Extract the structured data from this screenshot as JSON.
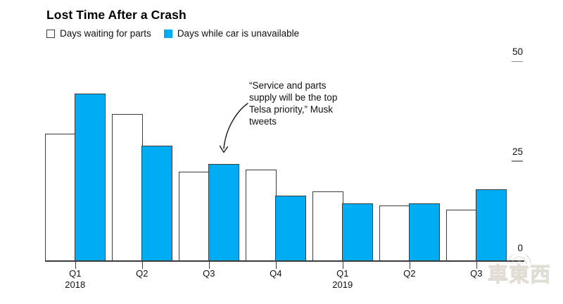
{
  "title": "Lost Time After a Crash",
  "legend": {
    "items": [
      {
        "label": "Days waiting for parts",
        "swatch": "white-outline"
      },
      {
        "label": "Days while car is unavailable",
        "swatch": "blue"
      }
    ]
  },
  "annotation": {
    "text": "“Service and parts supply will be the top Telsa priority,” Musk tweets",
    "lines": [
      "“Service and parts",
      "supply will be the top",
      "Telsa priority,” Musk",
      "tweets"
    ],
    "arrow_points_to": "Q3 2018"
  },
  "watermark": "車東西",
  "colors": {
    "bar_fill_blue": "#00adf3",
    "bar_fill_white": "#ffffff",
    "bar_outline": "#3b3c40",
    "axis_line": "#3b3c40",
    "y_tick_dash": "#8c8c8c",
    "text": "#111111"
  },
  "chart_data": {
    "type": "bar",
    "title": "Lost Time After a Crash",
    "unit": "days",
    "categories": [
      {
        "quarter": "Q1",
        "year": "2018"
      },
      {
        "quarter": "Q2"
      },
      {
        "quarter": "Q3"
      },
      {
        "quarter": "Q4"
      },
      {
        "quarter": "Q1",
        "year": "2019"
      },
      {
        "quarter": "Q2"
      },
      {
        "quarter": "Q3"
      }
    ],
    "series": [
      {
        "name": "Days waiting for parts",
        "style": "white-outlined",
        "values": [
          32,
          37,
          22.5,
          23,
          17.5,
          14,
          13
        ]
      },
      {
        "name": "Days while car is unavailable",
        "style": "solid-blue",
        "values": [
          42,
          29,
          24.5,
          16.5,
          14.5,
          14.5,
          18
        ]
      }
    ],
    "ylim": [
      0,
      50
    ],
    "yticks": [
      0,
      25,
      50
    ],
    "y_axis_side": "right",
    "grid": false,
    "legend_position": "top-left"
  }
}
